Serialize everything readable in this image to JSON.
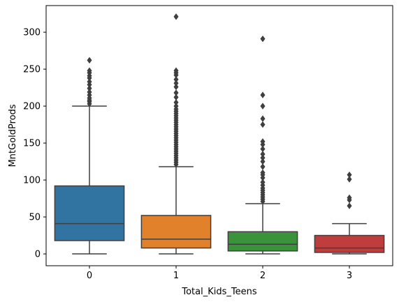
{
  "chart_data": {
    "type": "box",
    "xlabel": "Total_Kids_Teens",
    "ylabel": "MntGoldProds",
    "ylim": [
      -16,
      336
    ],
    "yticks": [
      0,
      50,
      100,
      150,
      200,
      250,
      300
    ],
    "grid": false,
    "series": [
      {
        "category": "0",
        "color": "#3274a1",
        "whisker_low": 0,
        "q1": 18,
        "median": 41,
        "q3": 92,
        "whisker_high": 200,
        "outliers": [
          203,
          206,
          208,
          211,
          215,
          219,
          224,
          229,
          233,
          238,
          241,
          245,
          248,
          262
        ]
      },
      {
        "category": "1",
        "color": "#e1812c",
        "whisker_low": 0,
        "q1": 8,
        "median": 20,
        "q3": 52,
        "whisker_high": 118,
        "outliers": [
          121,
          124,
          127,
          130,
          133,
          136,
          139,
          142,
          145,
          148,
          151,
          154,
          157,
          160,
          163,
          166,
          169,
          172,
          175,
          178,
          181,
          184,
          187,
          190,
          193,
          196,
          200,
          205,
          212,
          218,
          226,
          231,
          236,
          242,
          245,
          248,
          321
        ]
      },
      {
        "category": "2",
        "color": "#3a923a",
        "whisker_low": 0,
        "q1": 4,
        "median": 13,
        "q3": 30,
        "whisker_high": 68,
        "outliers": [
          71,
          74,
          77,
          80,
          83,
          86,
          89,
          93,
          97,
          103,
          107,
          110,
          118,
          125,
          130,
          135,
          142,
          148,
          152,
          175,
          183,
          200,
          215,
          291
        ]
      },
      {
        "category": "3",
        "color": "#c03d3e",
        "whisker_low": 0,
        "q1": 2,
        "median": 8,
        "q3": 25,
        "whisker_high": 41,
        "outliers": [
          65,
          73,
          76,
          101,
          107
        ]
      }
    ]
  }
}
